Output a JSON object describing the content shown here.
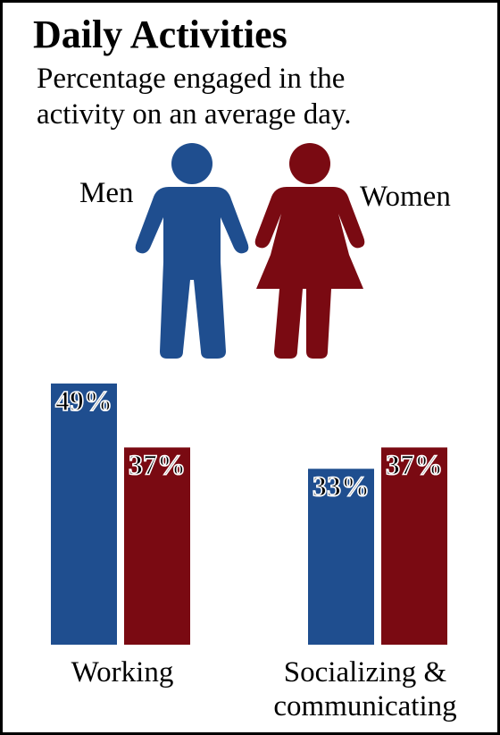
{
  "chart_data": {
    "type": "bar",
    "title": "Daily Activities",
    "subtitle_lines": [
      "Percentage engaged in the",
      "activity on an average day."
    ],
    "categories": [
      "Working",
      "Socializing & communicating"
    ],
    "category_label_lines": [
      [
        "Working"
      ],
      [
        "Socializing &",
        "communicating"
      ]
    ],
    "series": [
      {
        "name": "Men",
        "values": [
          49,
          33
        ],
        "labels": [
          "49%",
          "33%"
        ],
        "color": "#1f4e8f"
      },
      {
        "name": "Women",
        "values": [
          37,
          37
        ],
        "labels": [
          "37%",
          "37%"
        ],
        "color": "#7a0a12"
      }
    ],
    "ylim": [
      0,
      52
    ],
    "legend": "pictogram figures above bars",
    "grid": false
  },
  "colors": {
    "men": "#1f4e8f",
    "women": "#7a0a12",
    "border": "#000000"
  },
  "icons": {
    "men": "man-figure-icon",
    "women": "woman-figure-icon"
  }
}
